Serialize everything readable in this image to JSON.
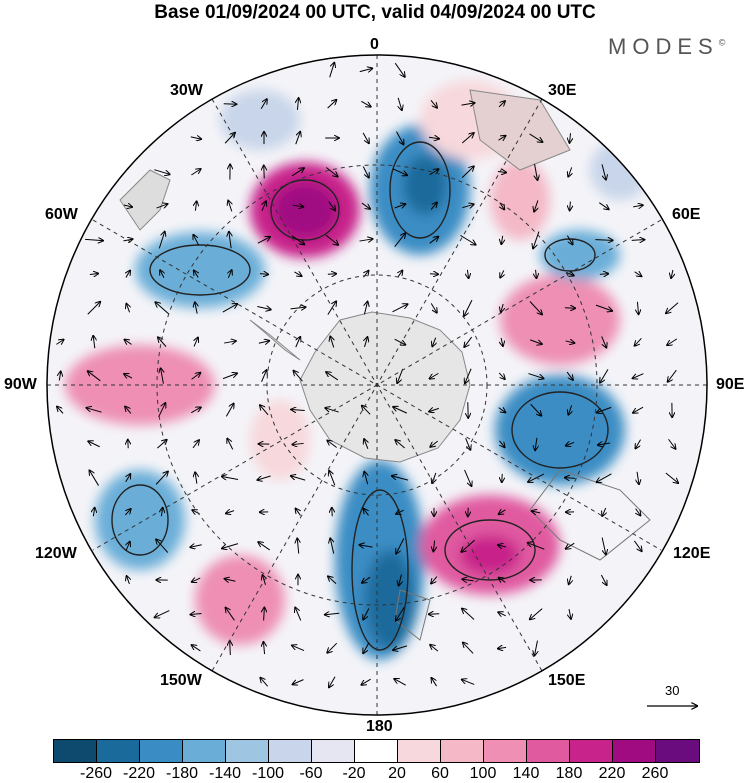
{
  "title": "Base 01/09/2024 00 UTC, valid 04/09/2024 00 UTC",
  "brand": "MODES",
  "brand_mark": "©",
  "lon_labels": {
    "deg0": "0",
    "deg30e": "30E",
    "deg60e": "60E",
    "deg90e": "90E",
    "deg120e": "120E",
    "deg150e": "150E",
    "deg180": "180",
    "deg150w": "150W",
    "deg120w": "120W",
    "deg90w": "90W",
    "deg60w": "60W",
    "deg30w": "30W"
  },
  "vector_scale_label": "30",
  "colorbar": {
    "colors": [
      "#0d4a6e",
      "#1a6a9c",
      "#3a8dc4",
      "#6aaed8",
      "#9ec6e3",
      "#c8d5ea",
      "#e6e6f2",
      "#ffffff",
      "#f7d8dc",
      "#f4b8c6",
      "#ee8fb3",
      "#e05aa0",
      "#c8238a",
      "#a00b82",
      "#6b0c7e"
    ],
    "ticks": [
      "-260",
      "-220",
      "-180",
      "-140",
      "-100",
      "-60",
      "-20",
      "20",
      "60",
      "100",
      "140",
      "180",
      "220",
      "260"
    ]
  }
}
